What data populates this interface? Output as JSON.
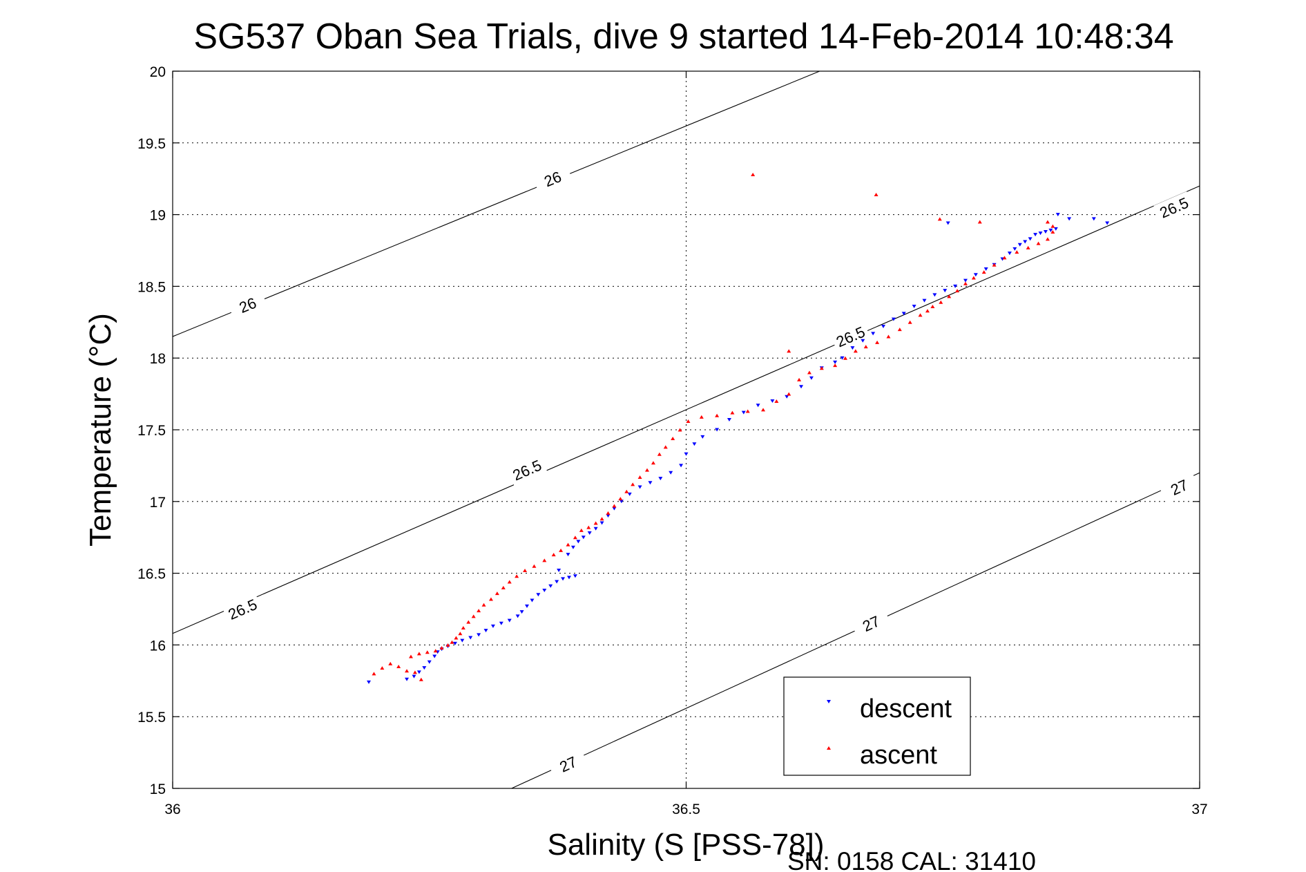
{
  "chart_data": {
    "type": "scatter",
    "title": "SG537 Oban Sea Trials, dive 9 started 14-Feb-2014 10:48:34",
    "xlabel": "Salinity (S [PSS-78])",
    "ylabel": "Temperature (°C)",
    "xlim": [
      36,
      37
    ],
    "ylim": [
      15,
      20
    ],
    "x_ticks": [
      "36",
      "36.5",
      "37"
    ],
    "y_ticks": [
      "15",
      "15.5",
      "16",
      "16.5",
      "17",
      "17.5",
      "18",
      "18.5",
      "19",
      "19.5",
      "20"
    ],
    "grid": true,
    "legend_position": "bottom-right",
    "footer": "SN: 0158  CAL: 31410",
    "contours": [
      {
        "label": "26",
        "points": [
          [
            36.0,
            18.15
          ],
          [
            36.63,
            20.0
          ]
        ],
        "label_positions": [
          [
            36.073,
            18.37
          ],
          [
            36.37,
            19.25
          ]
        ]
      },
      {
        "label": "26.5",
        "points": [
          [
            36.0,
            16.08
          ],
          [
            37.0,
            19.2
          ]
        ],
        "label_positions": [
          [
            36.068,
            16.25
          ],
          [
            36.345,
            17.22
          ],
          [
            36.66,
            18.15
          ],
          [
            36.975,
            19.05
          ]
        ]
      },
      {
        "label": "27",
        "points": [
          [
            36.33,
            15.0
          ],
          [
            37.0,
            17.2
          ]
        ],
        "label_positions": [
          [
            36.385,
            15.17
          ],
          [
            36.68,
            16.15
          ],
          [
            36.98,
            17.1
          ]
        ]
      }
    ],
    "series": [
      {
        "name": "descent",
        "color": "#0000ff",
        "marker": "triangle-down",
        "points": [
          [
            36.191,
            15.74
          ],
          [
            36.228,
            15.76
          ],
          [
            36.235,
            15.78
          ],
          [
            36.24,
            15.81
          ],
          [
            36.245,
            15.84
          ],
          [
            36.25,
            15.88
          ],
          [
            36.255,
            15.92
          ],
          [
            36.258,
            15.95
          ],
          [
            36.262,
            15.97
          ],
          [
            36.268,
            15.99
          ],
          [
            36.275,
            16.01
          ],
          [
            36.282,
            16.03
          ],
          [
            36.29,
            16.05
          ],
          [
            36.298,
            16.07
          ],
          [
            36.305,
            16.1
          ],
          [
            36.312,
            16.13
          ],
          [
            36.32,
            16.15
          ],
          [
            36.328,
            16.17
          ],
          [
            36.336,
            16.2
          ],
          [
            36.34,
            16.23
          ],
          [
            36.345,
            16.27
          ],
          [
            36.35,
            16.31
          ],
          [
            36.356,
            16.35
          ],
          [
            36.362,
            16.38
          ],
          [
            36.368,
            16.41
          ],
          [
            36.374,
            16.44
          ],
          [
            36.38,
            16.46
          ],
          [
            36.386,
            16.47
          ],
          [
            36.392,
            16.48
          ],
          [
            36.376,
            16.52
          ],
          [
            36.385,
            16.63
          ],
          [
            36.39,
            16.68
          ],
          [
            36.395,
            16.72
          ],
          [
            36.4,
            16.75
          ],
          [
            36.406,
            16.78
          ],
          [
            36.412,
            16.81
          ],
          [
            36.418,
            16.85
          ],
          [
            36.424,
            16.9
          ],
          [
            36.43,
            16.95
          ],
          [
            36.437,
            17.0
          ],
          [
            36.445,
            17.05
          ],
          [
            36.455,
            17.1
          ],
          [
            36.465,
            17.13
          ],
          [
            36.475,
            17.16
          ],
          [
            36.485,
            17.2
          ],
          [
            36.495,
            17.25
          ],
          [
            36.5,
            17.33
          ],
          [
            36.508,
            17.4
          ],
          [
            36.516,
            17.45
          ],
          [
            36.53,
            17.5
          ],
          [
            36.542,
            17.57
          ],
          [
            36.556,
            17.62
          ],
          [
            36.57,
            17.67
          ],
          [
            36.584,
            17.7
          ],
          [
            36.598,
            17.73
          ],
          [
            36.612,
            17.8
          ],
          [
            36.622,
            17.86
          ],
          [
            36.632,
            17.93
          ],
          [
            36.645,
            17.97
          ],
          [
            36.652,
            18.0
          ],
          [
            36.662,
            18.07
          ],
          [
            36.672,
            18.12
          ],
          [
            36.682,
            18.17
          ],
          [
            36.692,
            18.22
          ],
          [
            36.702,
            18.27
          ],
          [
            36.712,
            18.31
          ],
          [
            36.722,
            18.36
          ],
          [
            36.732,
            18.4
          ],
          [
            36.742,
            18.44
          ],
          [
            36.752,
            18.47
          ],
          [
            36.762,
            18.5
          ],
          [
            36.772,
            18.54
          ],
          [
            36.782,
            18.58
          ],
          [
            36.792,
            18.62
          ],
          [
            36.8,
            18.65
          ],
          [
            36.808,
            18.69
          ],
          [
            36.815,
            18.73
          ],
          [
            36.82,
            18.76
          ],
          [
            36.825,
            18.79
          ],
          [
            36.83,
            18.81
          ],
          [
            36.835,
            18.83
          ],
          [
            36.84,
            18.86
          ],
          [
            36.845,
            18.87
          ],
          [
            36.85,
            18.88
          ],
          [
            36.855,
            18.89
          ],
          [
            36.86,
            18.9
          ],
          [
            36.862,
            19.0
          ],
          [
            36.873,
            18.97
          ],
          [
            36.897,
            18.97
          ],
          [
            36.91,
            18.94
          ],
          [
            36.755,
            18.94
          ]
        ]
      },
      {
        "name": "ascent",
        "color": "#ff0000",
        "marker": "triangle-up",
        "points": [
          [
            36.196,
            15.8
          ],
          [
            36.204,
            15.84
          ],
          [
            36.212,
            15.87
          ],
          [
            36.22,
            15.85
          ],
          [
            36.228,
            15.82
          ],
          [
            36.236,
            15.81
          ],
          [
            36.242,
            15.76
          ],
          [
            36.232,
            15.92
          ],
          [
            36.24,
            15.94
          ],
          [
            36.248,
            15.95
          ],
          [
            36.256,
            15.96
          ],
          [
            36.262,
            15.98
          ],
          [
            36.268,
            16.0
          ],
          [
            36.272,
            16.02
          ],
          [
            36.276,
            16.05
          ],
          [
            36.28,
            16.08
          ],
          [
            36.283,
            16.12
          ],
          [
            36.288,
            16.16
          ],
          [
            36.293,
            16.2
          ],
          [
            36.298,
            16.24
          ],
          [
            36.303,
            16.28
          ],
          [
            36.31,
            16.32
          ],
          [
            36.316,
            16.36
          ],
          [
            36.322,
            16.4
          ],
          [
            36.328,
            16.44
          ],
          [
            36.335,
            16.48
          ],
          [
            36.343,
            16.52
          ],
          [
            36.352,
            16.55
          ],
          [
            36.362,
            16.59
          ],
          [
            36.371,
            16.63
          ],
          [
            36.378,
            16.66
          ],
          [
            36.385,
            16.7
          ],
          [
            36.392,
            16.75
          ],
          [
            36.398,
            16.8
          ],
          [
            36.405,
            16.82
          ],
          [
            36.412,
            16.85
          ],
          [
            36.418,
            16.88
          ],
          [
            36.424,
            16.92
          ],
          [
            36.43,
            16.97
          ],
          [
            36.436,
            17.02
          ],
          [
            36.442,
            17.07
          ],
          [
            36.448,
            17.12
          ],
          [
            36.455,
            17.17
          ],
          [
            36.462,
            17.22
          ],
          [
            36.468,
            17.27
          ],
          [
            36.474,
            17.33
          ],
          [
            36.48,
            17.38
          ],
          [
            36.487,
            17.44
          ],
          [
            36.494,
            17.5
          ],
          [
            36.502,
            17.56
          ],
          [
            36.515,
            17.59
          ],
          [
            36.53,
            17.6
          ],
          [
            36.545,
            17.62
          ],
          [
            36.56,
            17.63
          ],
          [
            36.575,
            17.64
          ],
          [
            36.588,
            17.7
          ],
          [
            36.6,
            17.75
          ],
          [
            36.61,
            17.85
          ],
          [
            36.62,
            17.9
          ],
          [
            36.632,
            17.93
          ],
          [
            36.645,
            17.95
          ],
          [
            36.655,
            18.0
          ],
          [
            36.665,
            18.05
          ],
          [
            36.675,
            18.08
          ],
          [
            36.686,
            18.11
          ],
          [
            36.697,
            18.15
          ],
          [
            36.708,
            18.2
          ],
          [
            36.718,
            18.25
          ],
          [
            36.728,
            18.3
          ],
          [
            36.735,
            18.33
          ],
          [
            36.74,
            18.36
          ],
          [
            36.748,
            18.39
          ],
          [
            36.756,
            18.43
          ],
          [
            36.764,
            18.47
          ],
          [
            36.772,
            18.52
          ],
          [
            36.78,
            18.56
          ],
          [
            36.79,
            18.6
          ],
          [
            36.8,
            18.65
          ],
          [
            36.81,
            18.7
          ],
          [
            36.822,
            18.74
          ],
          [
            36.833,
            18.77
          ],
          [
            36.843,
            18.8
          ],
          [
            36.852,
            18.83
          ],
          [
            36.857,
            18.88
          ],
          [
            36.857,
            18.92
          ],
          [
            36.852,
            18.95
          ],
          [
            36.747,
            18.97
          ],
          [
            36.786,
            18.95
          ],
          [
            36.565,
            19.28
          ],
          [
            36.6,
            18.05
          ],
          [
            36.685,
            19.14
          ]
        ]
      }
    ]
  }
}
